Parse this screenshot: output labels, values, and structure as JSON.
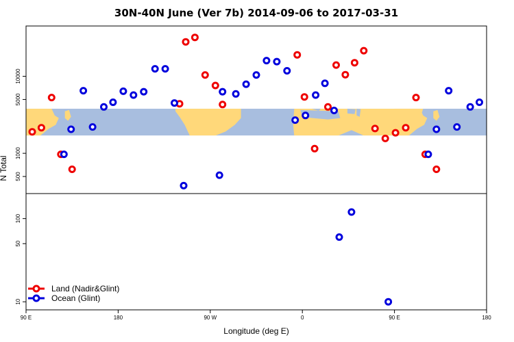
{
  "title": "30N-40N June (Ver 7b)   2014-09-06 to 2017-03-31",
  "xlabel": "Longitude (deg E)",
  "ylabel": "N Total",
  "colors": {
    "land": "#ee0000",
    "ocean": "#0000dd",
    "map_land": "#ffd87a",
    "map_ocean": "#a8bedf"
  },
  "chart_data": {
    "type": "scatter",
    "title": "30N-40N June (Ver 7b)   2014-09-06 to 2017-03-31",
    "xlabel": "Longitude (deg E)",
    "ylabel": "N Total",
    "x_range": [
      90,
      540
    ],
    "x_ticks": [
      {
        "value": 90,
        "label": "90 E"
      },
      {
        "value": 180,
        "label": "180"
      },
      {
        "value": 270,
        "label": "90 W"
      },
      {
        "value": 360,
        "label": "0"
      },
      {
        "value": 450,
        "label": "90 E"
      },
      {
        "value": 540,
        "label": "180"
      }
    ],
    "y_scale": "log",
    "panels": [
      {
        "name": "upper",
        "y_range": [
          300,
          45000
        ],
        "y_ticks": [
          500,
          1000,
          5000,
          10000
        ],
        "map_band": [
          1700,
          3800
        ]
      },
      {
        "name": "lower",
        "y_range": [
          8,
          200
        ],
        "y_ticks": [
          10,
          50,
          100
        ]
      }
    ],
    "series": [
      {
        "name": "Land (Nadir&Glint)",
        "marker": "circle",
        "points": [
          {
            "x": 96,
            "y": 1900
          },
          {
            "x": 105,
            "y": 2150
          },
          {
            "x": 115,
            "y": 5300
          },
          {
            "x": 124,
            "y": 970
          },
          {
            "x": 135,
            "y": 620
          },
          {
            "x": 240,
            "y": 4400
          },
          {
            "x": 246,
            "y": 28000
          },
          {
            "x": 255,
            "y": 32000
          },
          {
            "x": 265,
            "y": 10400
          },
          {
            "x": 275,
            "y": 7600
          },
          {
            "x": 282,
            "y": 4300
          },
          {
            "x": 355,
            "y": 19000
          },
          {
            "x": 362,
            "y": 5400
          },
          {
            "x": 372,
            "y": 1150
          },
          {
            "x": 385,
            "y": 4000
          },
          {
            "x": 393,
            "y": 14000
          },
          {
            "x": 402,
            "y": 10500
          },
          {
            "x": 411,
            "y": 15000
          },
          {
            "x": 420,
            "y": 21500
          },
          {
            "x": 431,
            "y": 2100
          },
          {
            "x": 441,
            "y": 1560
          },
          {
            "x": 451,
            "y": 1850
          },
          {
            "x": 461,
            "y": 2150
          },
          {
            "x": 471,
            "y": 5300
          },
          {
            "x": 480,
            "y": 970
          },
          {
            "x": 491,
            "y": 620
          }
        ]
      },
      {
        "name": "Ocean (Glint)",
        "marker": "circle",
        "points": [
          {
            "x": 127,
            "y": 970
          },
          {
            "x": 134,
            "y": 2050
          },
          {
            "x": 146,
            "y": 6500
          },
          {
            "x": 155,
            "y": 2200
          },
          {
            "x": 166,
            "y": 4000
          },
          {
            "x": 175,
            "y": 4600
          },
          {
            "x": 185,
            "y": 6400
          },
          {
            "x": 195,
            "y": 5700
          },
          {
            "x": 205,
            "y": 6300
          },
          {
            "x": 216,
            "y": 12500
          },
          {
            "x": 226,
            "y": 12500
          },
          {
            "x": 235,
            "y": 4500
          },
          {
            "x": 244,
            "y": 380
          },
          {
            "x": 279,
            "y": 520
          },
          {
            "x": 282,
            "y": 6300
          },
          {
            "x": 295,
            "y": 5900
          },
          {
            "x": 305,
            "y": 7900
          },
          {
            "x": 315,
            "y": 10400
          },
          {
            "x": 325,
            "y": 16000
          },
          {
            "x": 335,
            "y": 15500
          },
          {
            "x": 345,
            "y": 11800
          },
          {
            "x": 353,
            "y": 2700
          },
          {
            "x": 363,
            "y": 3100
          },
          {
            "x": 373,
            "y": 5700
          },
          {
            "x": 382,
            "y": 8100
          },
          {
            "x": 391,
            "y": 3600
          },
          {
            "x": 396,
            "y": 60
          },
          {
            "x": 408,
            "y": 120
          },
          {
            "x": 444,
            "y": 10
          },
          {
            "x": 483,
            "y": 970
          },
          {
            "x": 491,
            "y": 2050
          },
          {
            "x": 503,
            "y": 6500
          },
          {
            "x": 511,
            "y": 2200
          },
          {
            "x": 524,
            "y": 4000
          },
          {
            "x": 533,
            "y": 4600
          }
        ]
      }
    ],
    "legend": {
      "placement": "bottom-left",
      "entries": [
        "Land (Nadir&Glint)",
        "Ocean (Glint)"
      ]
    }
  }
}
